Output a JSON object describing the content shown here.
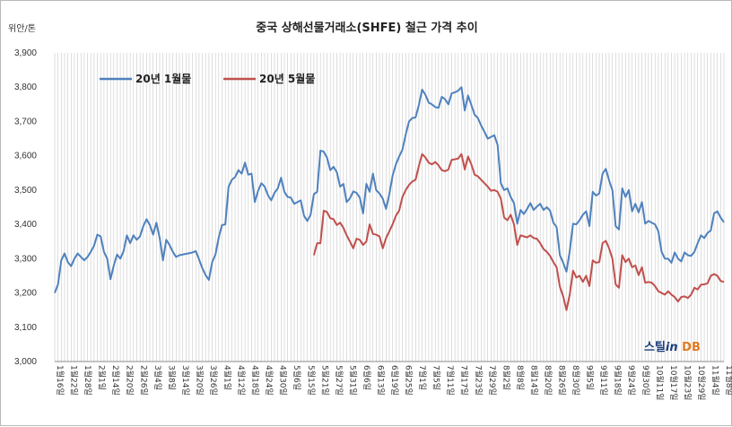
{
  "chart_data": {
    "type": "line",
    "title": "중국 상해선물거래소(SHFE)  철근 가격 추이",
    "unit_label": "위안/톤",
    "ylim": [
      3000,
      3900
    ],
    "yticks": [
      3000,
      3100,
      3200,
      3300,
      3400,
      3500,
      3600,
      3700,
      3800,
      3900
    ],
    "ytick_labels": [
      "3,000",
      "3,100",
      "3,200",
      "3,300",
      "3,400",
      "3,500",
      "3,600",
      "3,700",
      "3,800",
      "3,900"
    ],
    "grid": "vertical-daily",
    "legend_position": "top-left",
    "colors": {
      "jan": "#4f81bd",
      "may": "#c0504d",
      "grid": "#c8c8c8"
    },
    "x_labels": [
      "1월16일",
      "1월22일",
      "1월28일",
      "2월1일",
      "2월14일",
      "2월20일",
      "2월26일",
      "3월4일",
      "3월8일",
      "3월14일",
      "3월20일",
      "3월26일",
      "4월1일",
      "4월12일",
      "4월18일",
      "4월24일",
      "4월30일",
      "5월6일",
      "5월15일",
      "5월21일",
      "5월27일",
      "5월31일",
      "6월6일",
      "6월13일",
      "6월19일",
      "6월25일",
      "7월1일",
      "7월5일",
      "7월11일",
      "7월17일",
      "7월23일",
      "7월29일",
      "8월2일",
      "8월8일",
      "8월14일",
      "8월20일",
      "8월26일",
      "8월30일",
      "9월5일",
      "9월11일",
      "9월18일",
      "9월24일",
      "9월30일",
      "10월11일",
      "10월17일",
      "10월23일",
      "10월29일",
      "11월4일",
      "11월8일"
    ],
    "series": [
      {
        "name": "20년 1월물",
        "values": [
          3200,
          3225,
          3295,
          3315,
          3290,
          3278,
          3300,
          3315,
          3305,
          3295,
          3305,
          3320,
          3338,
          3370,
          3365,
          3320,
          3300,
          3240,
          3280,
          3312,
          3300,
          3322,
          3368,
          3345,
          3368,
          3355,
          3365,
          3395,
          3415,
          3398,
          3370,
          3405,
          3360,
          3295,
          3355,
          3340,
          3320,
          3305,
          3310,
          3312,
          3314,
          3316,
          3318,
          3322,
          3298,
          3272,
          3252,
          3238,
          3290,
          3312,
          3362,
          3398,
          3400,
          3510,
          3530,
          3538,
          3558,
          3548,
          3580,
          3545,
          3548,
          3465,
          3498,
          3520,
          3510,
          3485,
          3470,
          3492,
          3505,
          3536,
          3495,
          3480,
          3478,
          3460,
          3465,
          3470,
          3425,
          3410,
          3428,
          3488,
          3495,
          3615,
          3612,
          3595,
          3558,
          3568,
          3552,
          3510,
          3518,
          3465,
          3476,
          3496,
          3492,
          3478,
          3432,
          3518,
          3495,
          3548,
          3500,
          3490,
          3475,
          3445,
          3488,
          3542,
          3575,
          3598,
          3618,
          3662,
          3700,
          3710,
          3712,
          3748,
          3793,
          3778,
          3755,
          3750,
          3742,
          3740,
          3772,
          3765,
          3750,
          3782,
          3785,
          3790,
          3800,
          3732,
          3776,
          3748,
          3720,
          3710,
          3688,
          3670,
          3650,
          3655,
          3660,
          3632,
          3520,
          3500,
          3505,
          3480,
          3462,
          3402,
          3442,
          3430,
          3445,
          3462,
          3442,
          3452,
          3460,
          3442,
          3450,
          3440,
          3405,
          3392,
          3310,
          3288,
          3262,
          3322,
          3402,
          3400,
          3412,
          3428,
          3438,
          3395,
          3495,
          3484,
          3490,
          3548,
          3562,
          3528,
          3500,
          3395,
          3385,
          3505,
          3480,
          3500,
          3438,
          3460,
          3435,
          3465,
          3402,
          3410,
          3405,
          3400,
          3380,
          3320,
          3300,
          3300,
          3288,
          3318,
          3300,
          3292,
          3318,
          3310,
          3308,
          3320,
          3345,
          3368,
          3360,
          3375,
          3382,
          3432,
          3438,
          3420,
          3406
        ]
      },
      {
        "name": "20년 5월물",
        "values": [
          null,
          null,
          null,
          null,
          null,
          null,
          null,
          null,
          null,
          null,
          null,
          null,
          null,
          null,
          null,
          null,
          null,
          null,
          null,
          null,
          null,
          null,
          null,
          null,
          null,
          null,
          null,
          null,
          null,
          null,
          null,
          null,
          null,
          null,
          null,
          null,
          null,
          null,
          null,
          null,
          null,
          null,
          null,
          null,
          null,
          null,
          null,
          null,
          null,
          null,
          null,
          null,
          null,
          null,
          null,
          null,
          null,
          null,
          null,
          null,
          null,
          null,
          null,
          null,
          null,
          null,
          null,
          null,
          null,
          null,
          null,
          null,
          null,
          null,
          null,
          null,
          null,
          null,
          null,
          3310,
          3345,
          3345,
          3440,
          3436,
          3418,
          3415,
          3398,
          3405,
          3390,
          3368,
          3350,
          3330,
          3358,
          3355,
          3340,
          3350,
          3400,
          3372,
          3370,
          3365,
          3330,
          3360,
          3380,
          3400,
          3425,
          3440,
          3480,
          3500,
          3515,
          3525,
          3530,
          3570,
          3605,
          3595,
          3580,
          3575,
          3582,
          3572,
          3558,
          3555,
          3560,
          3588,
          3590,
          3592,
          3605,
          3560,
          3598,
          3575,
          3545,
          3540,
          3530,
          3520,
          3510,
          3498,
          3500,
          3495,
          3475,
          3420,
          3412,
          3428,
          3400,
          3340,
          3368,
          3365,
          3362,
          3368,
          3360,
          3358,
          3345,
          3328,
          3320,
          3308,
          3290,
          3275,
          3218,
          3190,
          3150,
          3195,
          3265,
          3245,
          3250,
          3232,
          3250,
          3220,
          3295,
          3288,
          3290,
          3345,
          3352,
          3330,
          3300,
          3225,
          3215,
          3310,
          3290,
          3300,
          3275,
          3280,
          3252,
          3275,
          3230,
          3232,
          3230,
          3220,
          3205,
          3200,
          3195,
          3205,
          3195,
          3188,
          3175,
          3188,
          3190,
          3185,
          3195,
          3215,
          3210,
          3224,
          3225,
          3228,
          3250,
          3255,
          3250,
          3235,
          3232
        ]
      }
    ]
  },
  "logo_text": {
    "part1": "스틸",
    "part2": "in",
    "part3": " DB"
  }
}
